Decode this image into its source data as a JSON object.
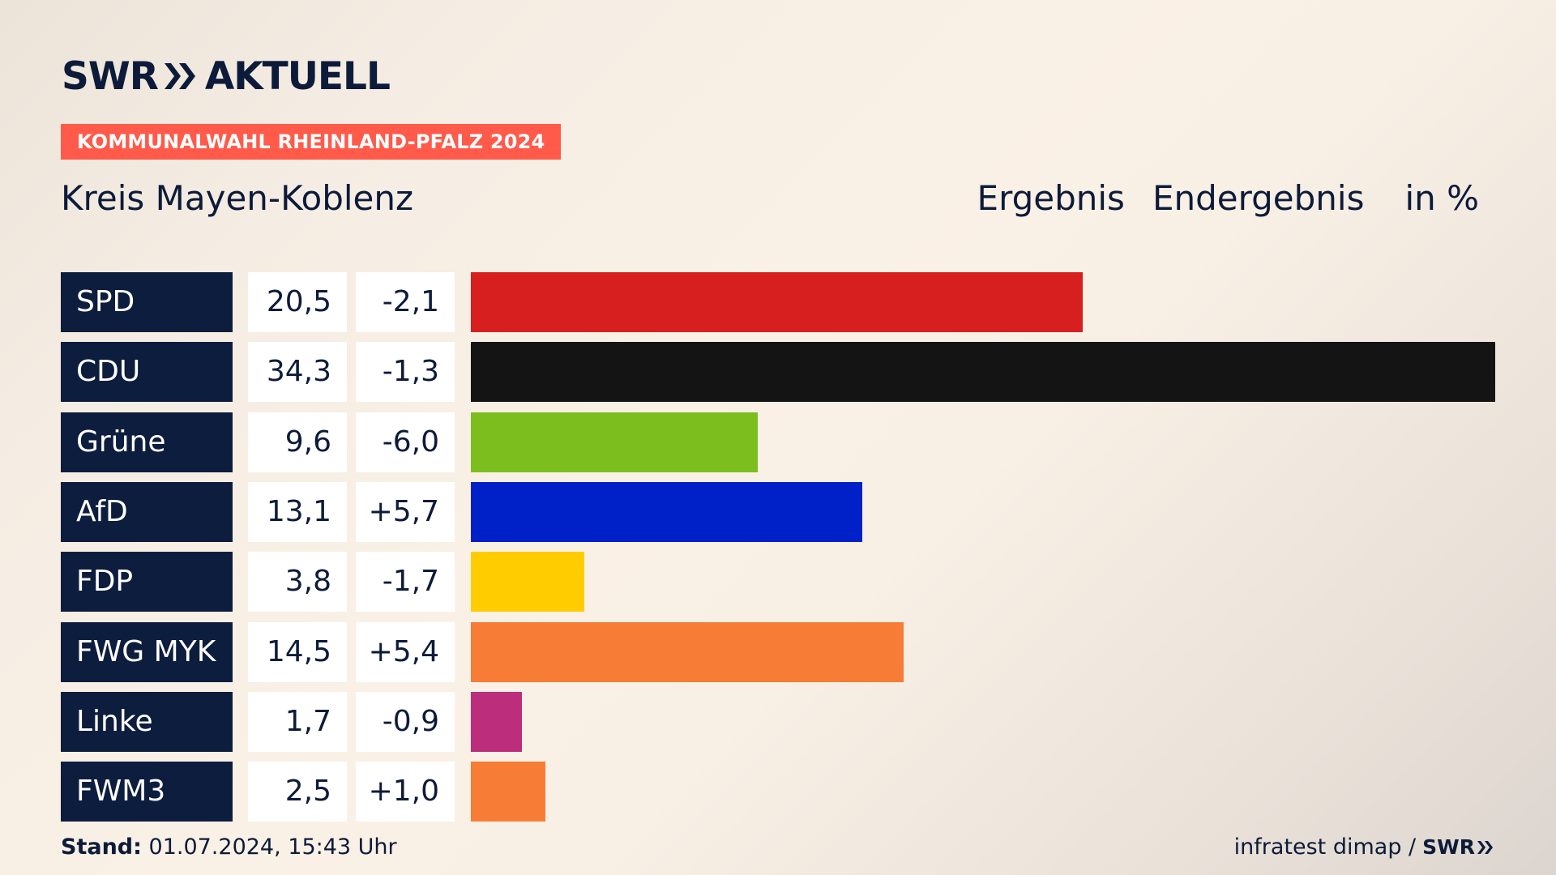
{
  "logo": {
    "text_left": "SWR",
    "text_right": "AKTUELL"
  },
  "badge": "KOMMUNALWAHL RHEINLAND-PFALZ 2024",
  "region": "Kreis Mayen-Koblenz",
  "header": {
    "label1": "Ergebnis",
    "label2": "Endergebnis",
    "unit": "in %"
  },
  "footer": {
    "stand_label": "Stand:",
    "stand_value": "01.07.2024, 15:43 Uhr",
    "source": "infratest dimap /",
    "source_brand": "SWR"
  },
  "colors": {
    "navy": "#0d1d3e",
    "badge": "#ff5a4a"
  },
  "chart_data": {
    "type": "bar",
    "orientation": "horizontal",
    "categories": [
      "SPD",
      "CDU",
      "Grüne",
      "AfD",
      "FDP",
      "FWG MYK",
      "Linke",
      "FWM3"
    ],
    "values": [
      20.5,
      34.3,
      9.6,
      13.1,
      3.8,
      14.5,
      1.7,
      2.5
    ],
    "values_label": [
      "20,5",
      "34,3",
      "9,6",
      "13,1",
      "3,8",
      "14,5",
      "1,7",
      "2,5"
    ],
    "diff_label": [
      "-2,1",
      "-1,3",
      "-6,0",
      "+5,7",
      "-1,7",
      "+5,4",
      "-0,9",
      "+1,0"
    ],
    "bar_colors": [
      "#d81f1f",
      "#141414",
      "#7bbe1e",
      "#0020c8",
      "#ffcc00",
      "#f77c35",
      "#bc2e7c",
      "#f77c35"
    ],
    "xlim": [
      0,
      34.3
    ]
  }
}
